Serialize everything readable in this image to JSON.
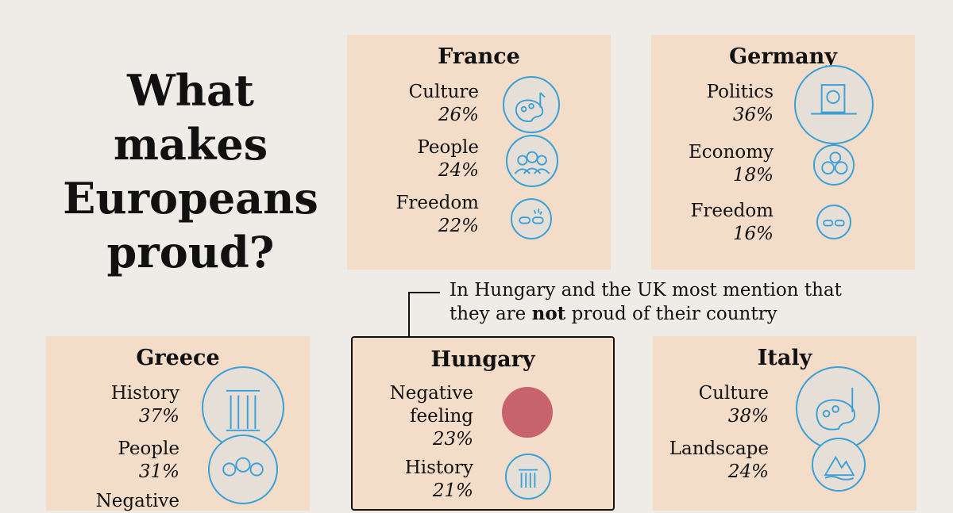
{
  "title": {
    "line1": "What makes",
    "line2": "Europeans",
    "line3": "proud?"
  },
  "note": {
    "line1": "In Hungary and the UK most mention that",
    "line2_pre": "they are ",
    "line2_bold": "not",
    "line2_post": " proud of their country"
  },
  "cards": {
    "france": {
      "country": "France",
      "items": [
        {
          "label": "Culture",
          "value": "26%",
          "icon": "palette-icon"
        },
        {
          "label": "People",
          "value": "24%",
          "icon": "people-icon"
        },
        {
          "label": "Freedom",
          "value": "22%",
          "icon": "broken-chain-icon"
        }
      ]
    },
    "germany": {
      "country": "Germany",
      "items": [
        {
          "label": "Politics",
          "value": "36%",
          "icon": "ballot-box-icon"
        },
        {
          "label": "Economy",
          "value": "18%",
          "icon": "euro-coins-icon"
        },
        {
          "label": "Freedom",
          "value": "16%",
          "icon": "broken-chain-icon"
        }
      ]
    },
    "greece": {
      "country": "Greece",
      "items": [
        {
          "label": "History",
          "value": "37%",
          "icon": "column-icon"
        },
        {
          "label": "People",
          "value": "31%",
          "icon": "people-icon"
        },
        {
          "label": "Negative",
          "value": "",
          "icon": ""
        }
      ]
    },
    "hungary": {
      "country": "Hungary",
      "items": [
        {
          "label": "Negative",
          "label2": "feeling",
          "value": "23%",
          "icon": "negative-dot"
        },
        {
          "label": "History",
          "value": "21%",
          "icon": "column-icon"
        }
      ]
    },
    "italy": {
      "country": "Italy",
      "items": [
        {
          "label": "Culture",
          "value": "38%",
          "icon": "palette-icon"
        },
        {
          "label": "Landscape",
          "value": "24%",
          "icon": "mountain-icon"
        }
      ]
    }
  },
  "colors": {
    "card": "#f3dcc8",
    "accent": "#3aa0d6",
    "negative": "#c7636c",
    "background": "#efebe6"
  }
}
